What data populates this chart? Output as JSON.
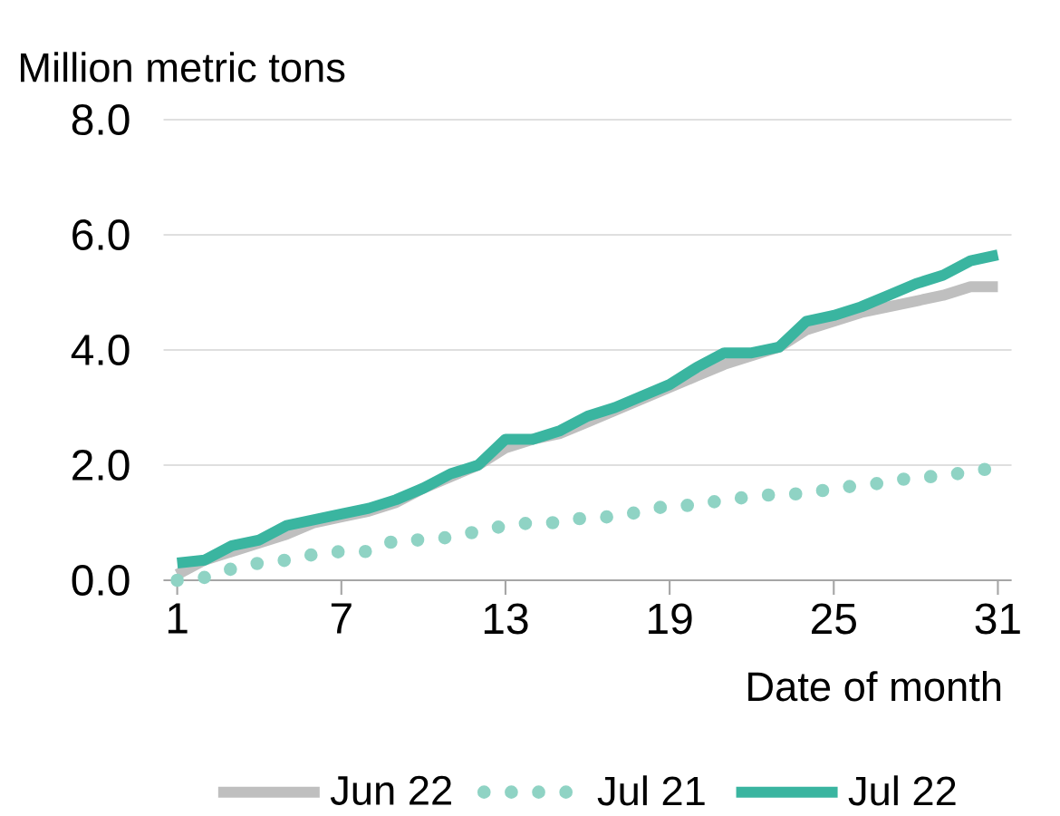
{
  "chart_data": {
    "type": "line",
    "ylabel": "Million metric tons",
    "xlabel": "Date of month",
    "x": [
      1,
      2,
      3,
      4,
      5,
      6,
      7,
      8,
      9,
      10,
      11,
      12,
      13,
      14,
      15,
      16,
      17,
      18,
      19,
      20,
      21,
      22,
      23,
      24,
      25,
      26,
      27,
      28,
      29,
      30,
      31
    ],
    "series": [
      {
        "name": "Jun 22",
        "color": "#bfbfbf",
        "line_style": "solid",
        "values": [
          0.1,
          0.35,
          0.5,
          0.65,
          0.8,
          1.0,
          1.1,
          1.2,
          1.35,
          1.6,
          1.8,
          2.0,
          2.3,
          2.45,
          2.55,
          2.75,
          2.95,
          3.15,
          3.35,
          3.55,
          3.75,
          3.9,
          4.05,
          4.35,
          4.5,
          4.65,
          4.75,
          4.85,
          4.95,
          5.1,
          5.1
        ]
      },
      {
        "name": "Jul 21",
        "color": "#8fd3c4",
        "line_style": "dotted",
        "values": [
          0.0,
          0.05,
          0.2,
          0.3,
          0.35,
          0.45,
          0.5,
          0.5,
          0.7,
          0.7,
          0.75,
          0.85,
          0.95,
          1.0,
          1.0,
          1.1,
          1.1,
          1.2,
          1.3,
          1.3,
          1.4,
          1.45,
          1.5,
          1.5,
          1.6,
          1.65,
          1.7,
          1.8,
          1.8,
          1.9,
          1.95
        ]
      },
      {
        "name": "Jul 22",
        "color": "#3ab5a0",
        "line_style": "solid",
        "values": [
          0.3,
          0.35,
          0.6,
          0.7,
          0.95,
          1.05,
          1.15,
          1.25,
          1.4,
          1.6,
          1.85,
          2.0,
          2.45,
          2.45,
          2.6,
          2.85,
          3.0,
          3.2,
          3.4,
          3.7,
          3.95,
          3.95,
          4.05,
          4.5,
          4.6,
          4.75,
          4.95,
          5.15,
          5.3,
          5.55,
          5.65
        ]
      }
    ],
    "xlim": [
      0.5,
      31.5
    ],
    "ylim": [
      0,
      8
    ],
    "xticks": [
      1,
      7,
      13,
      19,
      25,
      31
    ],
    "yticks": [
      {
        "value": 0,
        "label": "0.0"
      },
      {
        "value": 2,
        "label": "2.0"
      },
      {
        "value": 4,
        "label": "4.0"
      },
      {
        "value": 6,
        "label": "6.0"
      },
      {
        "value": 8,
        "label": "8.0"
      }
    ],
    "grid": "y",
    "legend": "bottom"
  }
}
